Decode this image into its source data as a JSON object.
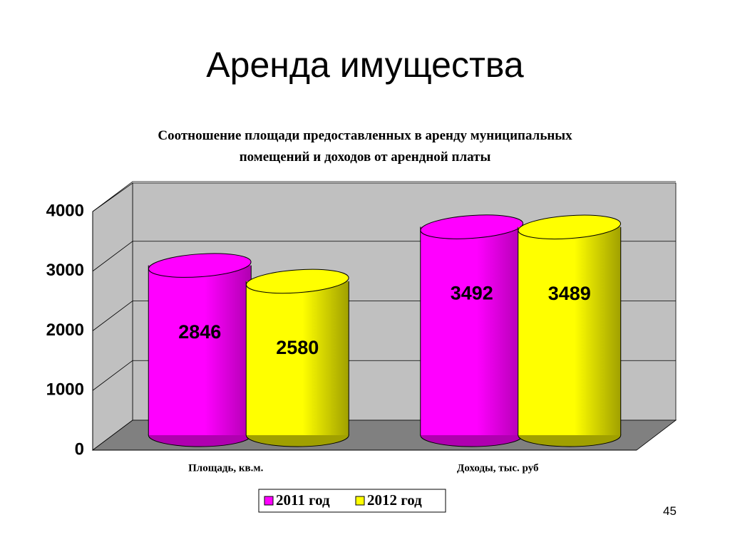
{
  "slide_title": "Аренда имущества",
  "page_number": "45",
  "chart_data": {
    "type": "bar3d",
    "title": "Соотношение площади предоставленных в аренду муниципальных помещений и доходов от арендной платы",
    "categories": [
      "Площадь, кв.м.",
      "Доходы, тыс. руб"
    ],
    "series": [
      {
        "name": "2011 год",
        "color": "#ff00ff",
        "values": [
          2846,
          3492
        ]
      },
      {
        "name": "2012 год",
        "color": "#ffff00",
        "values": [
          2580,
          3489
        ]
      }
    ],
    "ylim": [
      0,
      4000
    ],
    "yticks": [
      0,
      1000,
      2000,
      3000,
      4000
    ],
    "grid": true
  }
}
